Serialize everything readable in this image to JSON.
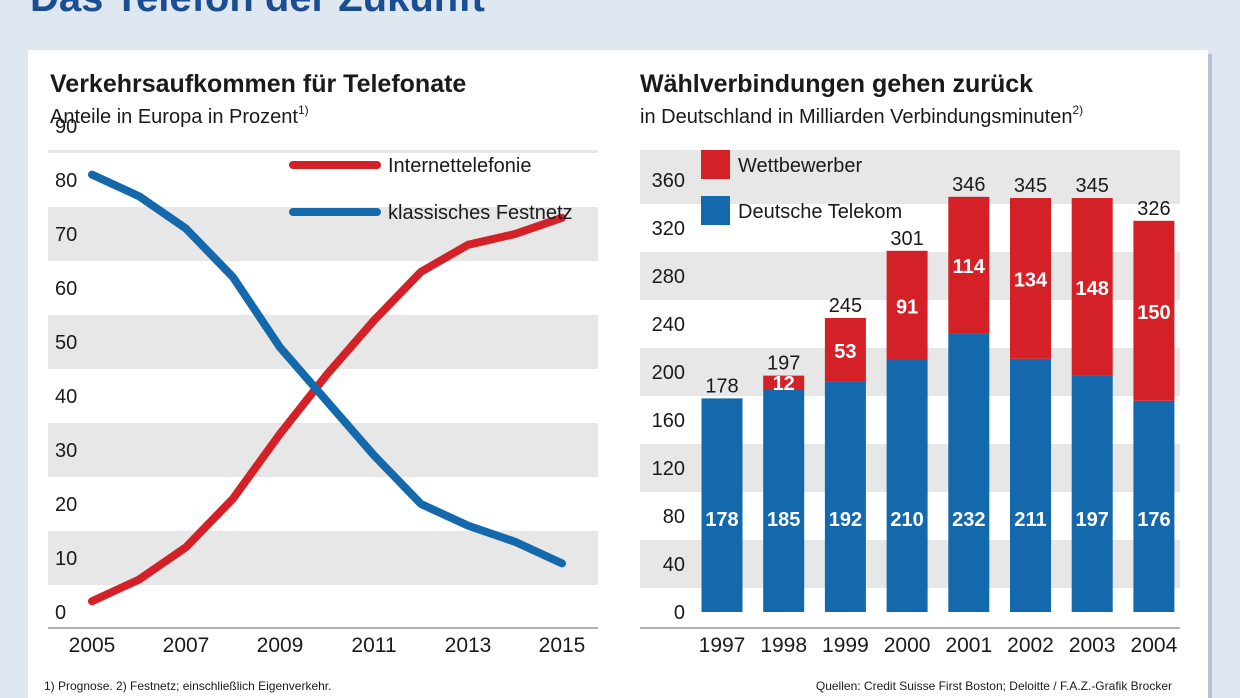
{
  "headline": "Das Telefon der Zukunft",
  "footnote": "1) Prognose. 2) Festnetz; einschließlich Eigenverkehr.",
  "source": "Quellen: Credit Suisse First Boston; Deloitte / F.A.Z.-Grafik Brocker",
  "colors": {
    "red": "#d42127",
    "blue": "#1469ad",
    "stripe": "#e7e7e7"
  },
  "chart_data": [
    {
      "type": "line",
      "title": "Verkehrsaufkommen für Telefonate",
      "subtitle": "Anteile in Europa in Prozent",
      "subtitle_sup": "1)",
      "xlabel": "",
      "ylabel": "",
      "ylim": [
        0,
        90
      ],
      "xlim": [
        2005,
        2015
      ],
      "yticks": [
        0,
        10,
        20,
        30,
        40,
        50,
        60,
        70,
        80,
        90
      ],
      "xticks": [
        "2005",
        "2007",
        "2009",
        "2011",
        "2013",
        "2015"
      ],
      "legend_position": "top-right",
      "series": [
        {
          "name": "Internettelefonie",
          "color": "#d42127",
          "x": [
            2005,
            2006,
            2007,
            2008,
            2009,
            2010,
            2011,
            2012,
            2013,
            2014,
            2015
          ],
          "y": [
            2,
            6,
            12,
            21,
            33,
            44,
            54,
            63,
            68,
            70,
            73
          ]
        },
        {
          "name": "klassisches Festnetz",
          "color": "#1469ad",
          "x": [
            2005,
            2006,
            2007,
            2008,
            2009,
            2010,
            2011,
            2012,
            2013,
            2014,
            2015
          ],
          "y": [
            81,
            77,
            71,
            62,
            49,
            39,
            29,
            20,
            16,
            13,
            9
          ]
        }
      ]
    },
    {
      "type": "bar",
      "stacked": true,
      "title": "Wählverbindungen gehen zurück",
      "subtitle": "in Deutschland in Milliarden Verbindungsminuten",
      "subtitle_sup": "2)",
      "xlabel": "",
      "ylabel": "",
      "ylim": [
        0,
        360
      ],
      "yticks": [
        0,
        40,
        80,
        120,
        160,
        200,
        240,
        280,
        320,
        360
      ],
      "categories": [
        "1997",
        "1998",
        "1999",
        "2000",
        "2001",
        "2002",
        "2003",
        "2004"
      ],
      "totals": [
        178,
        197,
        245,
        301,
        346,
        345,
        345,
        326
      ],
      "legend_position": "top-left",
      "series": [
        {
          "name": "Deutsche Telekom",
          "color": "#1469ad",
          "values": [
            178,
            185,
            192,
            210,
            232,
            211,
            197,
            176
          ]
        },
        {
          "name": "Wettbewerber",
          "color": "#d42127",
          "values": [
            0,
            12,
            53,
            91,
            114,
            134,
            148,
            150
          ]
        }
      ]
    }
  ]
}
